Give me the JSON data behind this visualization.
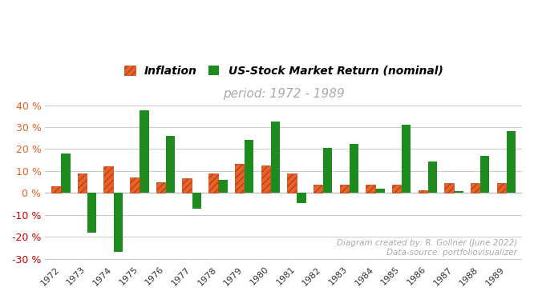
{
  "years": [
    1972,
    1973,
    1974,
    1975,
    1976,
    1977,
    1978,
    1979,
    1980,
    1981,
    1982,
    1983,
    1984,
    1985,
    1986,
    1987,
    1988,
    1989
  ],
  "inflation": [
    3.2,
    8.7,
    12.3,
    6.9,
    4.9,
    6.7,
    9.0,
    13.3,
    12.5,
    8.9,
    3.8,
    3.8,
    3.9,
    3.8,
    1.1,
    4.4,
    4.4,
    4.6
  ],
  "stock_market": [
    18.0,
    -18.0,
    -27.0,
    37.5,
    26.0,
    -7.0,
    6.0,
    24.0,
    32.5,
    -4.5,
    20.5,
    22.5,
    2.0,
    31.0,
    14.5,
    1.0,
    17.0,
    28.0
  ],
  "inflation_color": "#E8622A",
  "stock_color": "#1E8B1E",
  "title_main": "period: 1972 - 1989",
  "legend_inflation": "Inflation",
  "legend_stock": "US-Stock Market Return (nominal)",
  "ylim": [
    -32,
    42
  ],
  "yticks": [
    -30,
    -20,
    -10,
    0,
    10,
    20,
    30,
    40
  ],
  "annotation": "Diagram created by: R. Gollner (June 2022)\nData-source: portfoliovisualizer",
  "annotation_color": "#aaaaaa",
  "ytick_color_negative": "#CC0000",
  "ytick_color_positive": "#E8622A",
  "background_color": "#ffffff",
  "grid_color": "#cccccc"
}
